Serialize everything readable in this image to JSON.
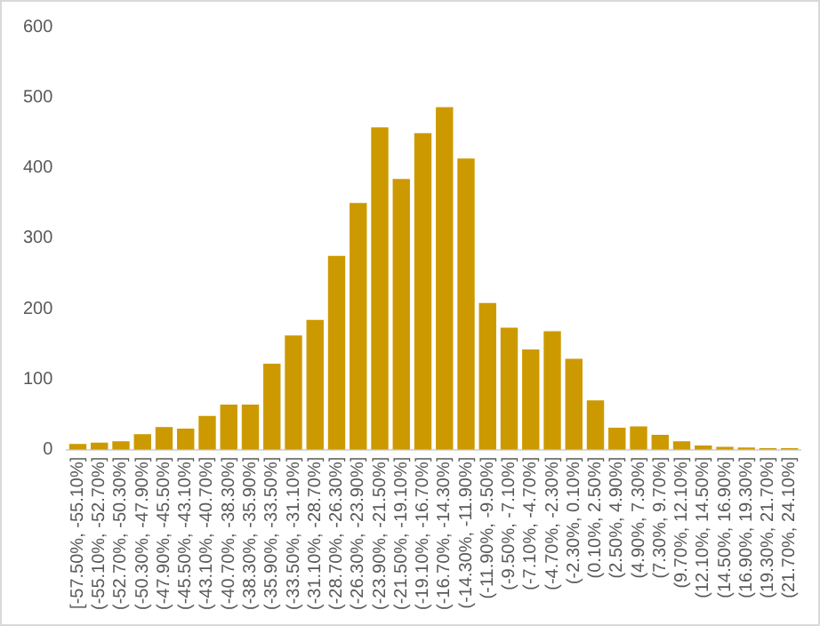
{
  "chart_data": {
    "type": "bar",
    "categories": [
      "[-57.50%, -55.10%]",
      "(-55.10%, -52.70%]",
      "(-52.70%, -50.30%]",
      "(-50.30%, -47.90%]",
      "(-47.90%, -45.50%]",
      "(-45.50%, -43.10%]",
      "(-43.10%, -40.70%]",
      "(-40.70%, -38.30%]",
      "(-38.30%, -35.90%]",
      "(-35.90%, -33.50%]",
      "(-33.50%, -31.10%]",
      "(-31.10%, -28.70%]",
      "(-28.70%, -26.30%]",
      "(-26.30%, -23.90%]",
      "(-23.90%, -21.50%]",
      "(-21.50%, -19.10%]",
      "(-19.10%, -16.70%]",
      "(-16.70%, -14.30%]",
      "(-14.30%, -11.90%]",
      "(-11.90%, -9.50%]",
      "(-9.50%, -7.10%]",
      "(-7.10%, -4.70%]",
      "(-4.70%, -2.30%]",
      "(-2.30%, 0.10%]",
      "(0.10%, 2.50%]",
      "(2.50%, 4.90%]",
      "(4.90%, 7.30%]",
      "(7.30%, 9.70%]",
      "(9.70%, 12.10%]",
      "(12.10%, 14.50%]",
      "(14.50%, 16.90%]",
      "(16.90%, 19.30%]",
      "(19.30%, 21.70%]",
      "(21.70%, 24.10%]"
    ],
    "values": [
      8,
      10,
      12,
      22,
      32,
      30,
      48,
      64,
      64,
      122,
      162,
      184,
      275,
      350,
      457,
      384,
      449,
      486,
      413,
      208,
      173,
      142,
      168,
      129,
      70,
      31,
      33,
      21,
      12,
      6,
      4,
      3,
      2,
      2
    ],
    "color": "#cc9a00",
    "ylim": [
      0,
      600
    ],
    "yticks": [
      0,
      100,
      200,
      300,
      400,
      500,
      600
    ],
    "grid": false,
    "legend": false
  }
}
